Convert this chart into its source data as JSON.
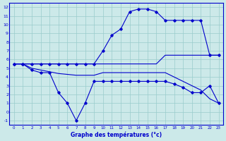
{
  "xlabel": "Graphe des températures (°c)",
  "hours": [
    0,
    1,
    2,
    3,
    4,
    5,
    6,
    7,
    8,
    9,
    10,
    11,
    12,
    13,
    14,
    15,
    16,
    17,
    18,
    19,
    20,
    21,
    22,
    23
  ],
  "line_temp": [
    5.5,
    5.5,
    5.5,
    5.5,
    5.5,
    5.5,
    5.5,
    5.5,
    5.5,
    5.5,
    7.0,
    8.8,
    9.5,
    11.5,
    11.8,
    11.8,
    11.5,
    10.5,
    10.5,
    10.5,
    10.5,
    10.5,
    6.5,
    6.5
  ],
  "line_flat": [
    5.5,
    5.5,
    5.5,
    5.5,
    5.5,
    5.5,
    5.5,
    5.5,
    5.5,
    5.5,
    5.5,
    5.5,
    5.5,
    5.5,
    5.5,
    5.5,
    5.5,
    6.5,
    6.5,
    6.5,
    6.5,
    6.5,
    6.5,
    6.5
  ],
  "line_decline": [
    5.5,
    5.5,
    5.0,
    4.8,
    4.6,
    4.4,
    4.3,
    4.2,
    4.2,
    4.2,
    4.5,
    4.5,
    4.5,
    4.5,
    4.5,
    4.5,
    4.5,
    4.5,
    4.0,
    3.5,
    3.0,
    2.5,
    1.5,
    1.0
  ],
  "line_dip": [
    5.5,
    5.5,
    4.8,
    4.5,
    4.5,
    2.2,
    1.0,
    -1.0,
    1.0,
    3.5,
    3.5,
    3.5,
    3.5,
    3.5,
    3.5,
    3.5,
    3.5,
    3.5,
    3.2,
    2.8,
    2.2,
    2.2,
    3.0,
    1.0
  ],
  "bg_color": "#cce9e9",
  "line_color": "#0000cc",
  "grid_color": "#99cccc",
  "ylim": [
    -1.5,
    12.5
  ],
  "yticks": [
    -1,
    0,
    1,
    2,
    3,
    4,
    5,
    6,
    7,
    8,
    9,
    10,
    11,
    12
  ],
  "xticks": [
    0,
    1,
    2,
    3,
    4,
    5,
    6,
    7,
    8,
    9,
    10,
    11,
    12,
    13,
    14,
    15,
    16,
    17,
    18,
    19,
    20,
    21,
    22,
    23
  ]
}
